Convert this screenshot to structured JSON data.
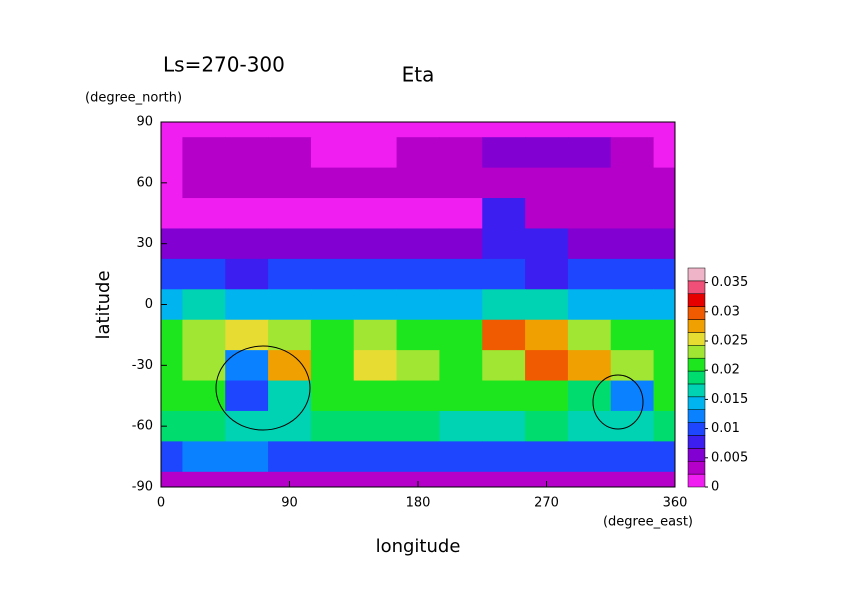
{
  "chart_data": {
    "type": "contour",
    "title": "Eta",
    "subtitle": "Ls=270-300",
    "x_label": "longitude",
    "x_units": "(degree_east)",
    "y_label": "latitude",
    "y_units": "(degree_north)",
    "x": [
      0,
      30,
      60,
      90,
      120,
      150,
      180,
      210,
      240,
      270,
      300,
      330,
      360
    ],
    "y": [
      90,
      75,
      60,
      45,
      30,
      15,
      0,
      -15,
      -30,
      -45,
      -60,
      -75,
      -90
    ],
    "z": [
      [
        0.001,
        0.001,
        0.001,
        0.001,
        0.001,
        0.001,
        0.001,
        0.001,
        0.001,
        0.001,
        0.001,
        0.001,
        0.001
      ],
      [
        0.002,
        0.003,
        0.004,
        0.003,
        0.002,
        0.002,
        0.003,
        0.004,
        0.005,
        0.006,
        0.005,
        0.003,
        0.002
      ],
      [
        0.002,
        0.003,
        0.004,
        0.004,
        0.004,
        0.004,
        0.004,
        0.004,
        0.004,
        0.004,
        0.004,
        0.003,
        0.003
      ],
      [
        0.001,
        0.001,
        0.001,
        0.001,
        0.001,
        0.001,
        0.001,
        0.002,
        0.008,
        0.004,
        0.003,
        0.003,
        0.003
      ],
      [
        0.006,
        0.006,
        0.006,
        0.006,
        0.006,
        0.006,
        0.006,
        0.006,
        0.007,
        0.007,
        0.006,
        0.006,
        0.006
      ],
      [
        0.009,
        0.009,
        0.008,
        0.009,
        0.009,
        0.009,
        0.009,
        0.009,
        0.011,
        0.008,
        0.009,
        0.009,
        0.009
      ],
      [
        0.015,
        0.016,
        0.015,
        0.014,
        0.014,
        0.015,
        0.015,
        0.014,
        0.017,
        0.016,
        0.014,
        0.015,
        0.015
      ],
      [
        0.022,
        0.023,
        0.026,
        0.024,
        0.022,
        0.024,
        0.022,
        0.021,
        0.03,
        0.028,
        0.023,
        0.022,
        0.022
      ],
      [
        0.022,
        0.024,
        0.012,
        0.027,
        0.022,
        0.025,
        0.024,
        0.022,
        0.024,
        0.03,
        0.028,
        0.024,
        0.022
      ],
      [
        0.02,
        0.02,
        0.01,
        0.016,
        0.02,
        0.02,
        0.02,
        0.02,
        0.02,
        0.02,
        0.019,
        0.012,
        0.02
      ],
      [
        0.018,
        0.018,
        0.016,
        0.016,
        0.018,
        0.018,
        0.018,
        0.017,
        0.017,
        0.018,
        0.017,
        0.016,
        0.018
      ],
      [
        0.011,
        0.012,
        0.012,
        0.011,
        0.01,
        0.009,
        0.01,
        0.011,
        0.011,
        0.011,
        0.01,
        0.011,
        0.011
      ],
      [
        0.003,
        0.003,
        0.003,
        0.003,
        0.003,
        0.003,
        0.003,
        0.003,
        0.003,
        0.003,
        0.003,
        0.003,
        0.003
      ]
    ],
    "xlim": [
      0,
      360
    ],
    "ylim": [
      -90,
      90
    ],
    "xticks": [
      0,
      90,
      180,
      270,
      360
    ],
    "yticks": [
      90,
      60,
      30,
      0,
      -30,
      -60,
      -90
    ],
    "colorbar": {
      "lim": [
        0,
        0.0375
      ],
      "ticks": [
        0,
        0.005,
        0.01,
        0.015,
        0.02,
        0.025,
        0.03,
        0.035
      ],
      "colors": [
        "#f01ef0",
        "#b400c8",
        "#8200d2",
        "#3c1ef0",
        "#1e46ff",
        "#0a82ff",
        "#00b4f0",
        "#00d2b4",
        "#00dc6e",
        "#1ee61e",
        "#a0e632",
        "#e6dc32",
        "#f0a000",
        "#f05a00",
        "#e60000",
        "#f05078",
        "#f0b4c8"
      ]
    }
  }
}
